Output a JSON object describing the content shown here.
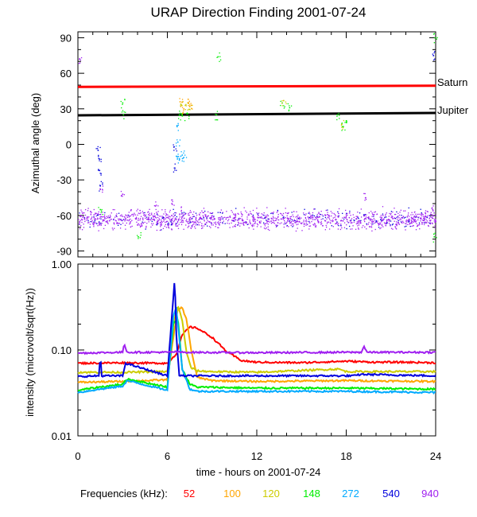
{
  "chart_data": [
    {
      "type": "scatter",
      "title": "URAP Direction Finding  2001-07-24",
      "xlabel": "",
      "ylabel": "Azimuthal angle (deg)",
      "xlim": [
        0,
        24
      ],
      "ylim": [
        -95,
        95
      ],
      "yticks": [
        90,
        60,
        30,
        0,
        -30,
        -60,
        -90
      ],
      "reference_lines": [
        {
          "name": "Saturn",
          "y_start": 48.5,
          "y_end": 49.5,
          "color": "#ff0000"
        },
        {
          "name": "Jupiter",
          "y_start": 24.5,
          "y_end": 26.5,
          "color": "#000000"
        }
      ],
      "series": [
        {
          "name": "940",
          "color": "#a020f0",
          "points": [
            [
              0.1,
              72
            ],
            [
              1.5,
              -38
            ],
            [
              3.0,
              -42
            ],
            [
              5.2,
              -52
            ],
            [
              6.3,
              -50
            ],
            [
              19.3,
              -45
            ],
            [
              23.8,
              -55
            ]
          ],
          "band": {
            "x": [
              0,
              24
            ],
            "y_center": -63,
            "spread": 7
          }
        },
        {
          "name": "540",
          "color": "#0000dd",
          "points": [
            [
              1.35,
              -5
            ],
            [
              1.4,
              -12
            ],
            [
              1.45,
              -22
            ],
            [
              1.5,
              -35
            ],
            [
              6.45,
              -2
            ],
            [
              6.5,
              -20
            ],
            [
              23.85,
              75
            ]
          ]
        },
        {
          "name": "272",
          "color": "#00aaff",
          "points": [
            [
              6.6,
              -10
            ],
            [
              6.8,
              -12
            ],
            [
              7.0,
              -9
            ],
            [
              7.1,
              -11
            ],
            [
              6.65,
              15
            ],
            [
              6.7,
              2
            ]
          ]
        },
        {
          "name": "148",
          "color": "#00ee00",
          "points": [
            [
              1.5,
              -55
            ],
            [
              3.0,
              35
            ],
            [
              3.05,
              25
            ],
            [
              4.05,
              -78
            ],
            [
              6.8,
              25
            ],
            [
              7.0,
              24
            ],
            [
              7.3,
              26
            ],
            [
              9.4,
              74
            ],
            [
              9.3,
              25
            ],
            [
              13.7,
              35
            ],
            [
              14.2,
              31
            ],
            [
              17.4,
              25
            ],
            [
              17.8,
              15
            ],
            [
              18.0,
              20
            ],
            [
              23.9,
              -78
            ],
            [
              23.95,
              90
            ]
          ]
        },
        {
          "name": "120",
          "color": "#cccc00",
          "points": [
            [
              6.9,
              34
            ],
            [
              7.2,
              33
            ],
            [
              7.5,
              32
            ],
            [
              13.8,
              37
            ],
            [
              17.7,
              17
            ]
          ]
        },
        {
          "name": "100",
          "color": "#ffa500",
          "points": [
            [
              6.85,
              36
            ],
            [
              7.1,
              30
            ],
            [
              7.4,
              35
            ],
            [
              7.6,
              33
            ]
          ]
        },
        {
          "name": "52",
          "color": "#ff0000",
          "points": []
        }
      ],
      "labels": [
        "Saturn",
        "Jupiter"
      ]
    },
    {
      "type": "line",
      "xlabel": "time - hours on 2001-07-24",
      "ylabel": "intensity (microvolt/sqrt(Hz))",
      "xlim": [
        0,
        24
      ],
      "ylim": [
        0.01,
        1.0
      ],
      "yscale": "log",
      "xticks": [
        0,
        6,
        12,
        18,
        24
      ],
      "yticks": [
        1.0,
        0.1,
        0.01
      ],
      "yticklabels": [
        "1.00",
        "0.10",
        "0.01"
      ],
      "series": [
        {
          "name": "52",
          "color": "#ff0000",
          "x": [
            0,
            3,
            6,
            6.6,
            7,
            7.5,
            8,
            9,
            10,
            11,
            12,
            15,
            18,
            20,
            22,
            24
          ],
          "y": [
            0.07,
            0.071,
            0.07,
            0.09,
            0.15,
            0.185,
            0.18,
            0.14,
            0.095,
            0.075,
            0.072,
            0.071,
            0.074,
            0.072,
            0.072,
            0.071
          ]
        },
        {
          "name": "100",
          "color": "#ffa500",
          "x": [
            0,
            3,
            6,
            6.4,
            6.7,
            7,
            7.3,
            7.6,
            8,
            9,
            12,
            18,
            24
          ],
          "y": [
            0.042,
            0.043,
            0.045,
            0.14,
            0.3,
            0.31,
            0.22,
            0.1,
            0.048,
            0.044,
            0.043,
            0.044,
            0.043
          ]
        },
        {
          "name": "120",
          "color": "#cccc00",
          "x": [
            0,
            3,
            6,
            6.4,
            6.7,
            7,
            7.3,
            7.6,
            8,
            9,
            12,
            17.5,
            18,
            24
          ],
          "y": [
            0.055,
            0.055,
            0.056,
            0.2,
            0.33,
            0.22,
            0.09,
            0.062,
            0.057,
            0.056,
            0.055,
            0.06,
            0.056,
            0.056
          ]
        },
        {
          "name": "148",
          "color": "#00ee00",
          "x": [
            0,
            1.5,
            3,
            3.3,
            6,
            6.4,
            6.7,
            7,
            7.5,
            8,
            12,
            18,
            24
          ],
          "y": [
            0.034,
            0.037,
            0.04,
            0.046,
            0.037,
            0.2,
            0.24,
            0.06,
            0.04,
            0.037,
            0.036,
            0.036,
            0.035
          ]
        },
        {
          "name": "272",
          "color": "#00aaff",
          "x": [
            0,
            1.5,
            3,
            3.3,
            6,
            6.4,
            6.6,
            7,
            7.5,
            8,
            12,
            18,
            24
          ],
          "y": [
            0.032,
            0.035,
            0.038,
            0.044,
            0.034,
            0.25,
            0.31,
            0.06,
            0.035,
            0.033,
            0.033,
            0.033,
            0.032
          ]
        },
        {
          "name": "540",
          "color": "#0000dd",
          "x": [
            0,
            1.4,
            1.5,
            1.6,
            3,
            3.2,
            6,
            6.5,
            6.6,
            6.8,
            7,
            12,
            18.5,
            19,
            24
          ],
          "y": [
            0.049,
            0.05,
            0.085,
            0.05,
            0.05,
            0.07,
            0.05,
            0.7,
            0.15,
            0.05,
            0.05,
            0.05,
            0.05,
            0.052,
            0.05
          ]
        },
        {
          "name": "940",
          "color": "#a020f0",
          "x": [
            0,
            1.5,
            3,
            3.1,
            3.3,
            6,
            6.5,
            7,
            12,
            18,
            19,
            19.2,
            19.4,
            24
          ],
          "y": [
            0.092,
            0.093,
            0.094,
            0.12,
            0.094,
            0.094,
            0.095,
            0.094,
            0.093,
            0.094,
            0.094,
            0.11,
            0.094,
            0.094
          ]
        }
      ]
    }
  ],
  "legend": {
    "label": "Frequencies (kHz):",
    "items": [
      {
        "value": "52",
        "color": "#ff0000"
      },
      {
        "value": "100",
        "color": "#ffa500"
      },
      {
        "value": "120",
        "color": "#cccc00"
      },
      {
        "value": "148",
        "color": "#00ee00"
      },
      {
        "value": "272",
        "color": "#00aaff"
      },
      {
        "value": "540",
        "color": "#0000dd"
      },
      {
        "value": "940",
        "color": "#a020f0"
      }
    ]
  },
  "xticklabels": [
    "0",
    "6",
    "12",
    "18",
    "24"
  ]
}
